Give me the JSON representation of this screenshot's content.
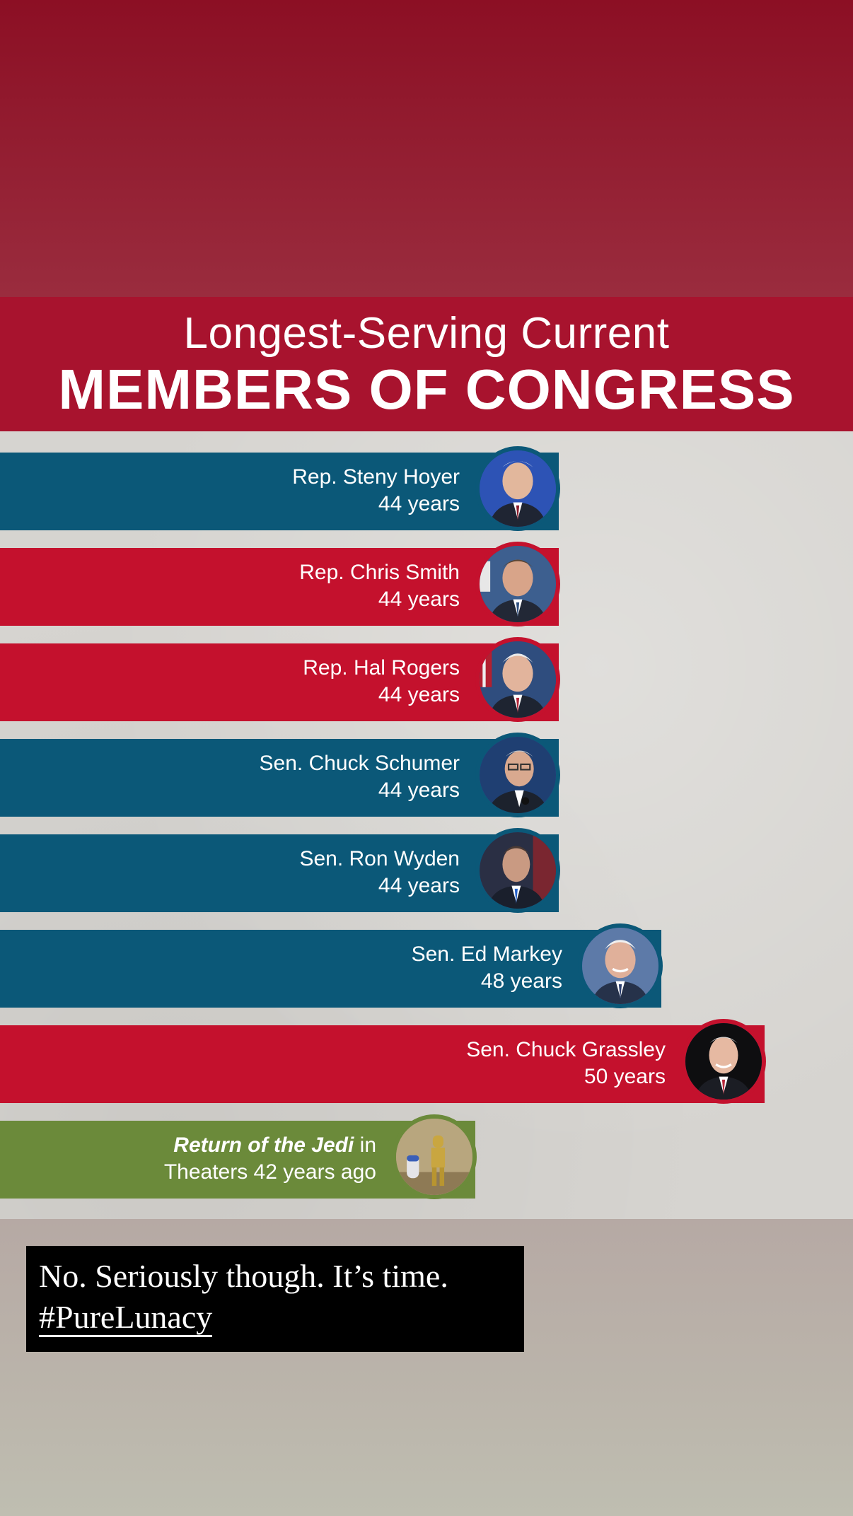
{
  "header": {
    "title_line1": "Longest-Serving Current",
    "title_line2": "MEMBERS OF CONGRESS"
  },
  "colors": {
    "democrat_blue": "#0b5878",
    "republican_red": "#c4112d",
    "jedi_green": "#6b8a3a",
    "header_red": "#a8132e"
  },
  "members": [
    {
      "name": "Rep. Steny Hoyer",
      "years": "44 years",
      "color": "blue"
    },
    {
      "name": "Rep. Chris Smith",
      "years": "44 years",
      "color": "red"
    },
    {
      "name": "Rep. Hal Rogers",
      "years": "44 years",
      "color": "red"
    },
    {
      "name": "Sen. Chuck Schumer",
      "years": "44 years",
      "color": "blue"
    },
    {
      "name": "Sen. Ron Wyden",
      "years": "44 years",
      "color": "blue"
    },
    {
      "name": "Sen. Ed Markey",
      "years": "48 years",
      "color": "blue"
    },
    {
      "name": "Sen. Chuck Grassley",
      "years": "50 years",
      "color": "red"
    }
  ],
  "comparison": {
    "title": "Return of the Jedi",
    "line1_suffix": " in",
    "line2": "Theaters 42 years ago"
  },
  "caption": {
    "text": "No. Seriously though. It’s time.",
    "hashtag": "#PureLunacy"
  }
}
